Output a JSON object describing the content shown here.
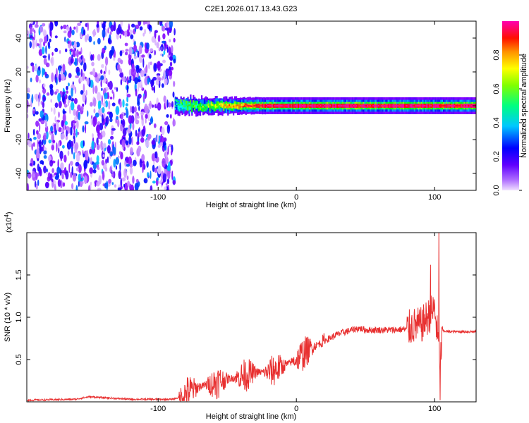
{
  "title": "C2E1.2026.017.13.43.G23",
  "chart_data": [
    {
      "type": "heatmap",
      "name": "spectrogram",
      "xlabel": "Height of straight line (km)",
      "ylabel": "Frequency (Hz)",
      "xlim": [
        -195,
        130
      ],
      "ylim": [
        -50,
        50
      ],
      "x_ticks": [
        -100,
        0,
        100
      ],
      "x_tick_labels": [
        "-100",
        "0",
        "100"
      ],
      "y_ticks": [
        -40,
        -20,
        0,
        20,
        40
      ],
      "y_tick_labels": [
        "-40",
        "-20",
        "0",
        "20",
        "40"
      ],
      "colorbar": {
        "label": "Normalized spectral amplitude",
        "range": [
          0,
          1
        ],
        "ticks": [
          0.0,
          0.2,
          0.4,
          0.6,
          0.8
        ],
        "tick_labels": [
          "0.0",
          "0.2",
          "0.4",
          "0.6",
          "0.8"
        ],
        "colormap": [
          "#f0e0ff",
          "#8000ff",
          "#0000ff",
          "#00ffff",
          "#00ff00",
          "#ffff00",
          "#ff8000",
          "#ff0000",
          "#ff00a0"
        ]
      },
      "features": {
        "noise_region_km": [
          -195,
          -88
        ],
        "signal_band_center_hz": 0,
        "signal_strong_from_km": -20
      }
    },
    {
      "type": "line",
      "name": "snr",
      "xlabel": "Height of straight line (km)",
      "ylabel": "SNR (10 * v/v)",
      "y_scale_label": "(x10",
      "y_scale_exp": "4",
      "y_scale_suffix": ")",
      "xlim": [
        -195,
        130
      ],
      "ylim": [
        0,
        2.0
      ],
      "x_ticks": [
        -100,
        0,
        100
      ],
      "x_tick_labels": [
        "-100",
        "0",
        "100"
      ],
      "y_ticks": [
        0.5,
        1.0,
        1.5
      ],
      "y_tick_labels": [
        "0.5",
        "1.0",
        "1.5"
      ],
      "color": "#e83030",
      "series": [
        {
          "name": "SNR envelope",
          "x": [
            -195,
            -160,
            -150,
            -120,
            -90,
            -85,
            -78,
            -70,
            -60,
            -50,
            -40,
            -30,
            -20,
            -10,
            0,
            10,
            20,
            30,
            40,
            45,
            50,
            60,
            70,
            80,
            85,
            90,
            95,
            100,
            102,
            104,
            106,
            110,
            120,
            130
          ],
          "y": [
            0.02,
            0.03,
            0.06,
            0.03,
            0.03,
            0.05,
            0.12,
            0.18,
            0.22,
            0.27,
            0.3,
            0.35,
            0.35,
            0.42,
            0.5,
            0.63,
            0.72,
            0.8,
            0.85,
            0.87,
            0.85,
            0.85,
            0.85,
            0.86,
            0.9,
            0.9,
            1.0,
            1.1,
            0.8,
            0.5,
            0.84,
            0.83,
            0.83,
            0.83
          ]
        }
      ],
      "spikes": [
        {
          "x": 97,
          "y": 1.62
        },
        {
          "x": 103,
          "y": 2.0
        },
        {
          "x": 104,
          "y": 0.02
        }
      ]
    }
  ]
}
